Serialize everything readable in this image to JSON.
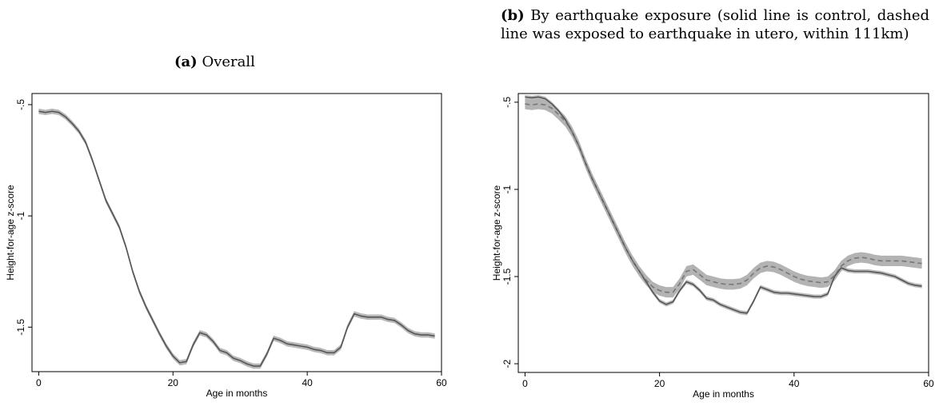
{
  "panels": [
    {
      "caption_tag": "(a)",
      "caption_text": "Overall"
    },
    {
      "caption_tag": "(b)",
      "caption_text": "By earthquake exposure (solid line is control, dashed line was exposed to earthquake in utero, within 111km)"
    }
  ],
  "chart_data": [
    {
      "type": "line",
      "xlabel": "Age in months",
      "ylabel": "Height-for-age z-score",
      "xlim": [
        -1,
        60
      ],
      "ylim": [
        -1.7,
        -0.45
      ],
      "xticks": [
        0,
        20,
        40,
        60
      ],
      "xtick_labels": [
        "0",
        "20",
        "40",
        "60"
      ],
      "yticks": [
        -0.5,
        -1,
        -1.5
      ],
      "ytick_labels": [
        "-.5",
        "-1",
        "-1.5"
      ],
      "grid": false,
      "series": [
        {
          "style": "solid",
          "color": "#555555",
          "band_color": "#b8b8b8",
          "x": [
            0,
            1,
            2,
            3,
            4,
            5,
            6,
            7,
            8,
            9,
            10,
            11,
            12,
            13,
            14,
            15,
            16,
            17,
            18,
            19,
            20,
            21,
            22,
            23,
            24,
            25,
            26,
            27,
            28,
            29,
            30,
            31,
            32,
            33,
            34,
            35,
            36,
            37,
            38,
            39,
            40,
            41,
            42,
            43,
            44,
            45,
            46,
            47,
            48,
            49,
            50,
            51,
            52,
            53,
            54,
            55,
            56,
            57,
            58,
            59
          ],
          "y": [
            -0.53,
            -0.535,
            -0.53,
            -0.535,
            -0.555,
            -0.585,
            -0.62,
            -0.67,
            -0.75,
            -0.84,
            -0.93,
            -0.99,
            -1.05,
            -1.14,
            -1.25,
            -1.34,
            -1.41,
            -1.47,
            -1.53,
            -1.585,
            -1.63,
            -1.66,
            -1.655,
            -1.58,
            -1.525,
            -1.535,
            -1.565,
            -1.605,
            -1.615,
            -1.64,
            -1.65,
            -1.665,
            -1.675,
            -1.675,
            -1.62,
            -1.55,
            -1.56,
            -1.575,
            -1.58,
            -1.585,
            -1.59,
            -1.6,
            -1.605,
            -1.615,
            -1.615,
            -1.59,
            -1.5,
            -1.44,
            -1.45,
            -1.455,
            -1.455,
            -1.455,
            -1.465,
            -1.47,
            -1.49,
            -1.515,
            -1.53,
            -1.535,
            -1.535,
            -1.54
          ],
          "band": 0.012
        }
      ]
    },
    {
      "type": "line",
      "xlabel": "Age in months",
      "ylabel": "Height-for-age z-score",
      "xlim": [
        -1,
        60
      ],
      "ylim": [
        -2.05,
        -0.45
      ],
      "xticks": [
        0,
        20,
        40,
        60
      ],
      "xtick_labels": [
        "0",
        "20",
        "40",
        "60"
      ],
      "yticks": [
        -0.5,
        -1,
        -1.5,
        -2
      ],
      "ytick_labels": [
        "-.5",
        "-1",
        "-1.5",
        "-2"
      ],
      "grid": false,
      "series": [
        {
          "style": "solid",
          "color": "#555555",
          "band_color": "#bdbdbd",
          "x": [
            0,
            1,
            2,
            3,
            4,
            5,
            6,
            7,
            8,
            9,
            10,
            11,
            12,
            13,
            14,
            15,
            16,
            17,
            18,
            19,
            20,
            21,
            22,
            23,
            24,
            25,
            26,
            27,
            28,
            29,
            30,
            31,
            32,
            33,
            34,
            35,
            36,
            37,
            38,
            39,
            40,
            41,
            42,
            43,
            44,
            45,
            46,
            47,
            48,
            49,
            50,
            51,
            52,
            53,
            54,
            55,
            56,
            57,
            58,
            59
          ],
          "y": [
            -0.47,
            -0.475,
            -0.47,
            -0.48,
            -0.51,
            -0.55,
            -0.6,
            -0.67,
            -0.75,
            -0.85,
            -0.94,
            -1.02,
            -1.1,
            -1.18,
            -1.26,
            -1.34,
            -1.41,
            -1.47,
            -1.53,
            -1.59,
            -1.64,
            -1.66,
            -1.645,
            -1.58,
            -1.53,
            -1.545,
            -1.58,
            -1.625,
            -1.635,
            -1.66,
            -1.675,
            -1.69,
            -1.705,
            -1.71,
            -1.64,
            -1.56,
            -1.575,
            -1.59,
            -1.595,
            -1.595,
            -1.6,
            -1.605,
            -1.61,
            -1.615,
            -1.615,
            -1.6,
            -1.5,
            -1.45,
            -1.465,
            -1.47,
            -1.47,
            -1.47,
            -1.475,
            -1.48,
            -1.49,
            -1.5,
            -1.52,
            -1.54,
            -1.55,
            -1.555
          ],
          "band": 0.012
        },
        {
          "style": "dashed",
          "color": "#777777",
          "band_color": "#b3b3b3",
          "x": [
            0,
            1,
            2,
            3,
            4,
            5,
            6,
            7,
            8,
            9,
            10,
            11,
            12,
            13,
            14,
            15,
            16,
            17,
            18,
            19,
            20,
            21,
            22,
            23,
            24,
            25,
            26,
            27,
            28,
            29,
            30,
            31,
            32,
            33,
            34,
            35,
            36,
            37,
            38,
            39,
            40,
            41,
            42,
            43,
            44,
            45,
            46,
            47,
            48,
            49,
            50,
            51,
            52,
            53,
            54,
            55,
            56,
            57,
            58,
            59
          ],
          "y": [
            -0.51,
            -0.515,
            -0.51,
            -0.515,
            -0.535,
            -0.57,
            -0.61,
            -0.67,
            -0.75,
            -0.85,
            -0.94,
            -1.02,
            -1.1,
            -1.18,
            -1.26,
            -1.34,
            -1.41,
            -1.47,
            -1.52,
            -1.56,
            -1.58,
            -1.59,
            -1.59,
            -1.54,
            -1.47,
            -1.46,
            -1.49,
            -1.52,
            -1.53,
            -1.54,
            -1.545,
            -1.545,
            -1.54,
            -1.52,
            -1.48,
            -1.45,
            -1.44,
            -1.445,
            -1.46,
            -1.48,
            -1.5,
            -1.515,
            -1.525,
            -1.53,
            -1.535,
            -1.53,
            -1.495,
            -1.44,
            -1.41,
            -1.395,
            -1.39,
            -1.395,
            -1.405,
            -1.41,
            -1.41,
            -1.41,
            -1.41,
            -1.415,
            -1.42,
            -1.425
          ],
          "band": 0.03
        }
      ]
    }
  ]
}
